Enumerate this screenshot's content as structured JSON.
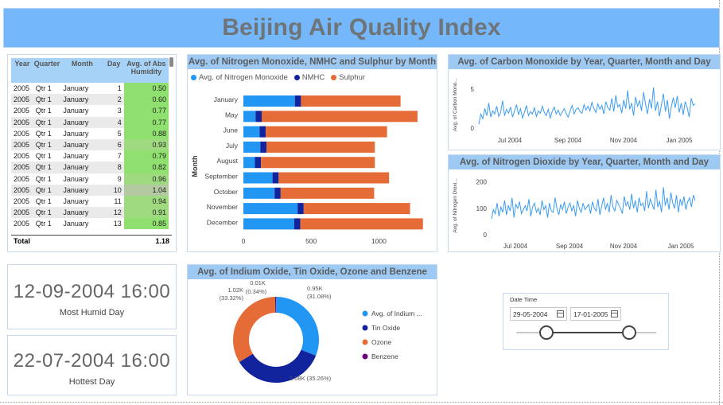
{
  "title": "Beijing Air Quality Index",
  "table": {
    "headers": [
      "Year",
      "Quarter",
      "Month",
      "Day",
      "Avg. of Abs Humidity"
    ],
    "rows": [
      [
        "2005",
        "Qtr 1",
        "January",
        "1",
        "0.50"
      ],
      [
        "2005",
        "Qtr 1",
        "January",
        "2",
        "0.60"
      ],
      [
        "2005",
        "Qtr 1",
        "January",
        "3",
        "0.77"
      ],
      [
        "2005",
        "Qtr 1",
        "January",
        "4",
        "0.77"
      ],
      [
        "2005",
        "Qtr 1",
        "January",
        "5",
        "0.88"
      ],
      [
        "2005",
        "Qtr 1",
        "January",
        "6",
        "0.93"
      ],
      [
        "2005",
        "Qtr 1",
        "January",
        "7",
        "0.79"
      ],
      [
        "2005",
        "Qtr 1",
        "January",
        "8",
        "0.82"
      ],
      [
        "2005",
        "Qtr 1",
        "January",
        "9",
        "0.96"
      ],
      [
        "2005",
        "Qtr 1",
        "January",
        "10",
        "1.04"
      ],
      [
        "2005",
        "Qtr 1",
        "January",
        "11",
        "0.94"
      ],
      [
        "2005",
        "Qtr 1",
        "January",
        "12",
        "0.91"
      ],
      [
        "2005",
        "Qtr 1",
        "January",
        "13",
        "0.85"
      ]
    ],
    "total_label": "Total",
    "total_value": "1.18",
    "humidity_color": "#90e070"
  },
  "cards": {
    "humid_value": "12-09-2004 16:00",
    "humid_label": "Most Humid Day",
    "hot_value": "22-07-2004 16:00",
    "hot_label": "Hottest Day"
  },
  "colors": {
    "blue": "#2196f3",
    "navy": "#12239e",
    "orange": "#e66c37",
    "purple": "#6b007b",
    "line": "#3c9cf2"
  },
  "chart_data": [
    {
      "type": "bar",
      "stacked": true,
      "orientation": "horizontal",
      "title": "Avg. of Nitrogen Monoxide, NMHC and Sulphur by Month",
      "ylabel": "Month",
      "categories": [
        "January",
        "May",
        "June",
        "July",
        "August",
        "September",
        "October",
        "November",
        "December"
      ],
      "series": [
        {
          "name": "Avg. of Nitrogen Monoxide",
          "values": [
            380,
            90,
            120,
            125,
            85,
            215,
            230,
            400,
            375
          ]
        },
        {
          "name": "NMHC",
          "values": [
            45,
            45,
            45,
            45,
            45,
            45,
            45,
            45,
            45
          ]
        },
        {
          "name": "Sulphur",
          "values": [
            735,
            1150,
            895,
            800,
            840,
            815,
            690,
            785,
            905
          ]
        }
      ],
      "xticks": [
        "0",
        "500",
        "1000"
      ],
      "xlim": [
        0,
        1350
      ]
    },
    {
      "type": "line",
      "title": "Avg. of Carbon Monoxide by Year, Quarter, Month and Day",
      "ylabel": "Avg. of Carbon Mono...",
      "yticks": [
        "0",
        "5"
      ],
      "ylim": [
        0,
        6
      ],
      "xticks": [
        "Jul 2004",
        "Sep 2004",
        "Nov 2004",
        "Jan 2005"
      ],
      "values": [
        0.5,
        1.8,
        1.2,
        2.5,
        1.6,
        3.2,
        1.4,
        2.2,
        1.8,
        2.8,
        1.5,
        2.0,
        3.5,
        1.6,
        2.4,
        1.9,
        2.7,
        1.4,
        2.2,
        3.0,
        1.7,
        2.5,
        1.3,
        2.0,
        2.9,
        1.6,
        2.1,
        1.8,
        2.6,
        1.5,
        2.2,
        1.9,
        2.8,
        2.0,
        1.6,
        2.4,
        1.3,
        2.1,
        2.7,
        1.8,
        2.3,
        1.6,
        2.0,
        2.5,
        1.9,
        1.4,
        2.2,
        2.9,
        1.8,
        2.4,
        2.6,
        2.1,
        1.9,
        3.0,
        2.3,
        2.8,
        2.2,
        3.3,
        2.5,
        2.0,
        3.1,
        2.4,
        2.9,
        1.8,
        3.4,
        2.6,
        2.3,
        3.8,
        2.1,
        4.2,
        2.7,
        3.0,
        1.9,
        3.6,
        2.5,
        4.8,
        2.4,
        3.2,
        1.6,
        4.0,
        2.8,
        3.5,
        2.2,
        4.6,
        3.1,
        1.8,
        3.7,
        2.5,
        5.2,
        2.2,
        3.4,
        1.5,
        3.0,
        4.4,
        2.1,
        3.6,
        1.2,
        2.8,
        3.9,
        2.6,
        4.1,
        2.0,
        3.2,
        1.7,
        3.4,
        2.6,
        1.4,
        3.8,
        2.9,
        3.1
      ]
    },
    {
      "type": "line",
      "title": "Avg. of Nitrogen Dioxide by Year, Quarter, Month and Day",
      "ylabel": "Avg. of Nitrogen Dioxi...",
      "yticks": [
        "0",
        "100",
        "200"
      ],
      "ylim": [
        0,
        220
      ],
      "xticks": [
        "Jul 2004",
        "Sep 2004",
        "Nov 2004",
        "Jan 2005"
      ],
      "values": [
        60,
        95,
        80,
        120,
        70,
        105,
        85,
        130,
        75,
        110,
        90,
        140,
        65,
        115,
        100,
        125,
        80,
        95,
        110,
        90,
        135,
        70,
        105,
        120,
        85,
        100,
        75,
        130,
        95,
        110,
        65,
        120,
        90,
        85,
        140,
        100,
        75,
        115,
        95,
        125,
        80,
        105,
        120,
        90,
        110,
        70,
        130,
        100,
        85,
        120,
        95,
        105,
        115,
        80,
        125,
        100,
        90,
        135,
        75,
        110,
        140,
        95,
        120,
        85,
        150,
        105,
        90,
        130,
        115,
        100,
        80,
        145,
        110,
        125,
        95,
        155,
        100,
        130,
        85,
        140,
        110,
        120,
        90,
        165,
        100,
        135,
        115,
        95,
        170,
        105,
        125,
        85,
        180,
        110,
        140,
        95,
        160,
        120,
        100,
        150,
        85,
        135,
        110,
        145,
        95,
        125,
        140,
        105,
        150,
        130
      ]
    },
    {
      "type": "pie",
      "donut": true,
      "title": "Avg. of Indium Oxide, Tin Oxide, Ozone and Benzene",
      "slices": [
        {
          "name": "Avg. of Indium ...",
          "value": 0.95,
          "label": "0.95K",
          "pct": "(31.08%)"
        },
        {
          "name": "Tin Oxide",
          "value": 1.08,
          "label": "1.08K",
          "pct": "(35.26%)"
        },
        {
          "name": "Ozone",
          "value": 1.02,
          "label": "1.02K",
          "pct": "(33.32%)"
        },
        {
          "name": "Benzene",
          "value": 0.01,
          "label": "0.01K",
          "pct": "(0.34%)"
        }
      ]
    }
  ],
  "slicer": {
    "label": "Date Time",
    "start": "29-05-2004",
    "end": "17-01-2005"
  }
}
